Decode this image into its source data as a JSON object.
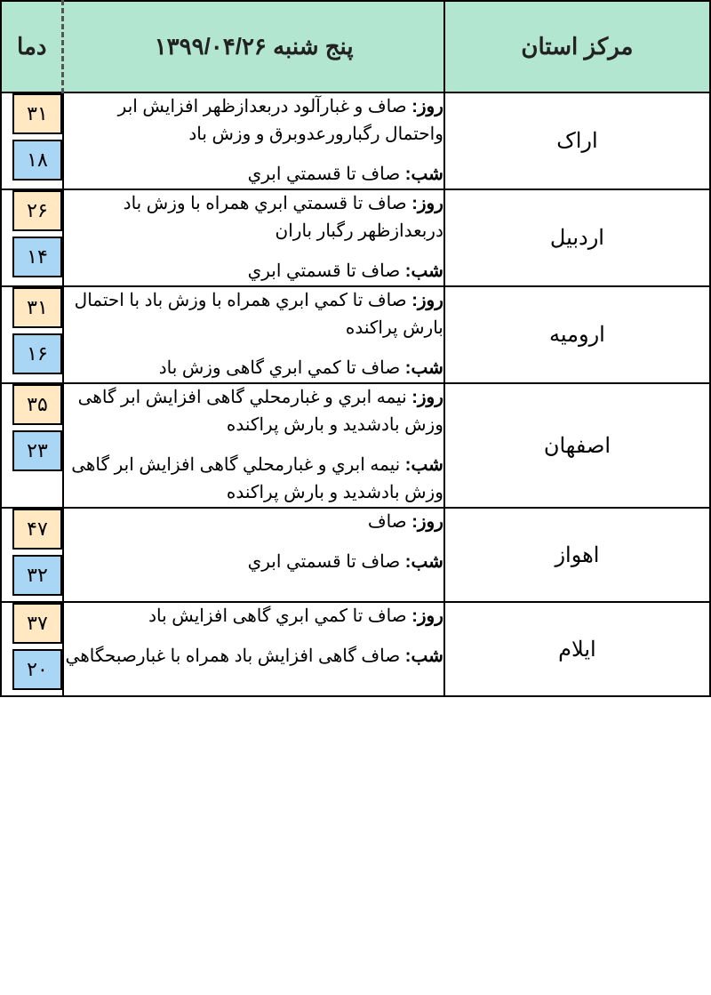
{
  "header": {
    "province_label": "مرکز استان",
    "date_label": "پنج شنبه ۱۳۹۹/۰۴/۲۶",
    "temp_label": "دما"
  },
  "labels": {
    "day": "روز:",
    "night": "شب:"
  },
  "colors": {
    "header_bg": "#b3e6d1",
    "high_bg": "#ffe8c2",
    "low_bg": "#a9d6f5",
    "border": "#000000",
    "dash": "#555555"
  },
  "rows": [
    {
      "province": "اراک",
      "day": "صاف و غبارآلود دربعدازظهر افزایش ابر واحتمال رگبارورعدوبرق و وزش باد",
      "night": "صاف تا قسمتي ابري",
      "high": "۳۱",
      "low": "۱۸"
    },
    {
      "province": "اردبیل",
      "day": "صاف تا قسمتي ابري همراه با وزش باد دربعدازظهر رگبار باران",
      "night": "صاف تا قسمتي ابري",
      "high": "۲۶",
      "low": "۱۴"
    },
    {
      "province": "ارومیه",
      "day": "صاف تا كمي ابري همراه با وزش باد با احتمال بارش پراكنده",
      "night": "صاف تا كمي ابري گاهی وزش باد",
      "high": "۳۱",
      "low": "۱۶"
    },
    {
      "province": "اصفهان",
      "day": "نيمه ابري و غبارمحلي گاهی افزایش ابر گاهی وزش بادشدید و بارش پراكنده",
      "night": "نيمه ابري و غبارمحلي گاهی افزایش ابر گاهی وزش بادشدید و بارش پراكنده",
      "high": "۳۵",
      "low": "۲۳"
    },
    {
      "province": "اهواز",
      "day": "صاف",
      "night": "صاف تا قسمتي ابري",
      "high": "۴۷",
      "low": "۳۲"
    },
    {
      "province": "ایلام",
      "day": "صاف تا كمي ابري گاهی افزایش باد",
      "night": "صاف گاهی افزایش باد همراه با غبارصبحگاهي",
      "high": "۳۷",
      "low": "۲۰"
    }
  ]
}
